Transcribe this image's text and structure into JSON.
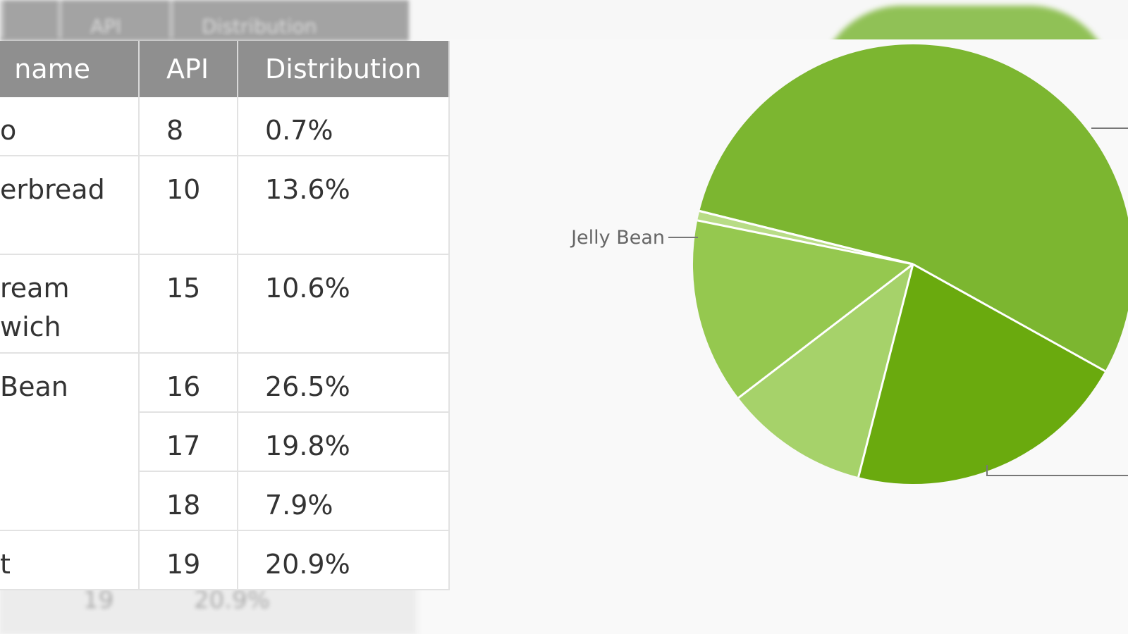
{
  "table": {
    "headers": [
      "name",
      "API",
      "Distribution"
    ],
    "rows": [
      {
        "name": "o",
        "api": "8",
        "distribution": "0.7%"
      },
      {
        "name": "erbread",
        "api": "10",
        "distribution": "13.6%"
      },
      {
        "name": "ream wich",
        "api": "15",
        "distribution": "10.6%"
      },
      {
        "name": "Bean",
        "api": "16",
        "distribution": "26.5%"
      },
      {
        "name": "",
        "api": "17",
        "distribution": "19.8%"
      },
      {
        "name": "",
        "api": "18",
        "distribution": "7.9%"
      },
      {
        "name": "t",
        "api": "19",
        "distribution": "20.9%"
      }
    ],
    "ghost_bottom": [
      "19",
      "20.9%"
    ],
    "ghost_top": [
      "API",
      "Distribution"
    ]
  },
  "chart_data": {
    "type": "pie",
    "title": "",
    "slices": [
      {
        "label": "Jelly Bean",
        "value": 54.2,
        "color": "#7cb630"
      },
      {
        "label": "",
        "value": 20.9,
        "color": "#6aaa0e"
      },
      {
        "label": "",
        "value": 10.6,
        "color": "#a6d26a"
      },
      {
        "label": "",
        "value": 13.6,
        "color": "#95c84f"
      },
      {
        "label": "",
        "value": 0.7,
        "color": "#b8dc86"
      }
    ],
    "start_angle_deg": 194,
    "separator_color": "#ffffff"
  },
  "colors": {
    "table_header_bg": "#8f8f8f",
    "table_header_text": "#ffffff",
    "table_border": "#e2e2e2",
    "page_bg": "#f7f7f7",
    "label_color": "#666666"
  }
}
